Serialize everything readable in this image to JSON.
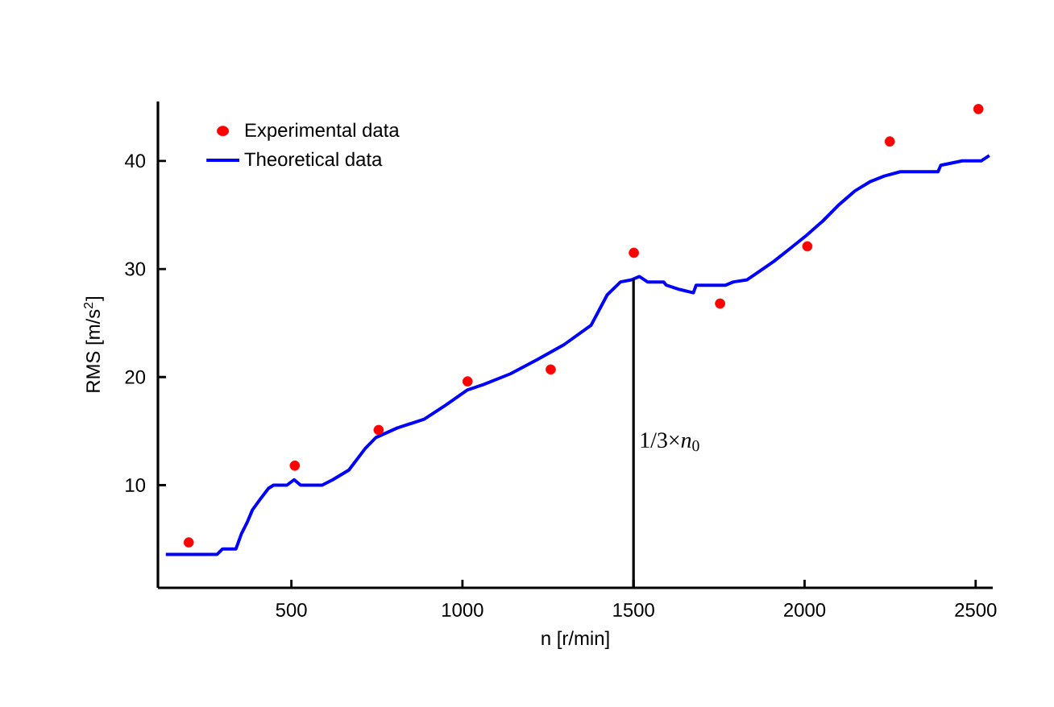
{
  "chart_data": {
    "type": "scatter",
    "xlabel": "n  [r/min]",
    "ylabel": "RMS  [m/s$^{2}$]",
    "xlim": [
      110,
      2550
    ],
    "ylim": [
      0.5,
      45.5
    ],
    "xticks": [
      500,
      1000,
      1500,
      2000,
      2500
    ],
    "yticks": [
      10,
      20,
      30,
      40
    ],
    "legend": "top left",
    "grid": false,
    "series": [
      {
        "name": "Experimental data",
        "marker": "circle",
        "color": "#ff0000",
        "x": [
          200,
          510,
          755,
          1015,
          1258,
          1501,
          1753,
          2008,
          2249,
          2508
        ],
        "values": [
          4.7,
          11.8,
          15.1,
          19.6,
          20.7,
          31.5,
          26.8,
          32.1,
          41.8,
          44.8
        ]
      },
      {
        "name": "Theoretical data",
        "type": "line",
        "marker": "none",
        "line_style": "solid",
        "color": "#0000ff",
        "x": [
          133,
          283,
          299,
          338,
          354,
          370,
          386,
          409,
          433,
          448,
          487,
          508,
          527,
          590,
          621,
          668,
          716,
          747,
          810,
          888,
          951,
          1014,
          1061,
          1140,
          1218,
          1297,
          1376,
          1423,
          1462,
          1494,
          1517,
          1541,
          1588,
          1596,
          1635,
          1675,
          1683,
          1769,
          1792,
          1832,
          1864,
          1910,
          1958,
          2005,
          2052,
          2099,
          2146,
          2193,
          2233,
          2280,
          2390,
          2398,
          2461,
          2516,
          2540
        ],
        "values": [
          3.6,
          3.6,
          4.1,
          4.1,
          5.5,
          6.5,
          7.7,
          8.7,
          9.7,
          10.0,
          10.0,
          10.5,
          10.0,
          10.0,
          10.5,
          11.4,
          13.4,
          14.4,
          15.3,
          16.1,
          17.4,
          18.8,
          19.3,
          20.3,
          21.6,
          23.0,
          24.8,
          27.6,
          28.8,
          29.0,
          29.3,
          28.8,
          28.8,
          28.5,
          28.1,
          27.8,
          28.5,
          28.5,
          28.8,
          29.0,
          29.7,
          30.7,
          31.9,
          33.1,
          34.4,
          35.9,
          37.2,
          38.1,
          38.6,
          39.0,
          39.0,
          39.6,
          40.0,
          40.0,
          40.5
        ]
      }
    ],
    "ref_lines": [
      {
        "axis": "x",
        "value": 1500,
        "label": "1/3×*n*$_{0}$",
        "color": "#000000",
        "line_style": "solid"
      }
    ]
  }
}
